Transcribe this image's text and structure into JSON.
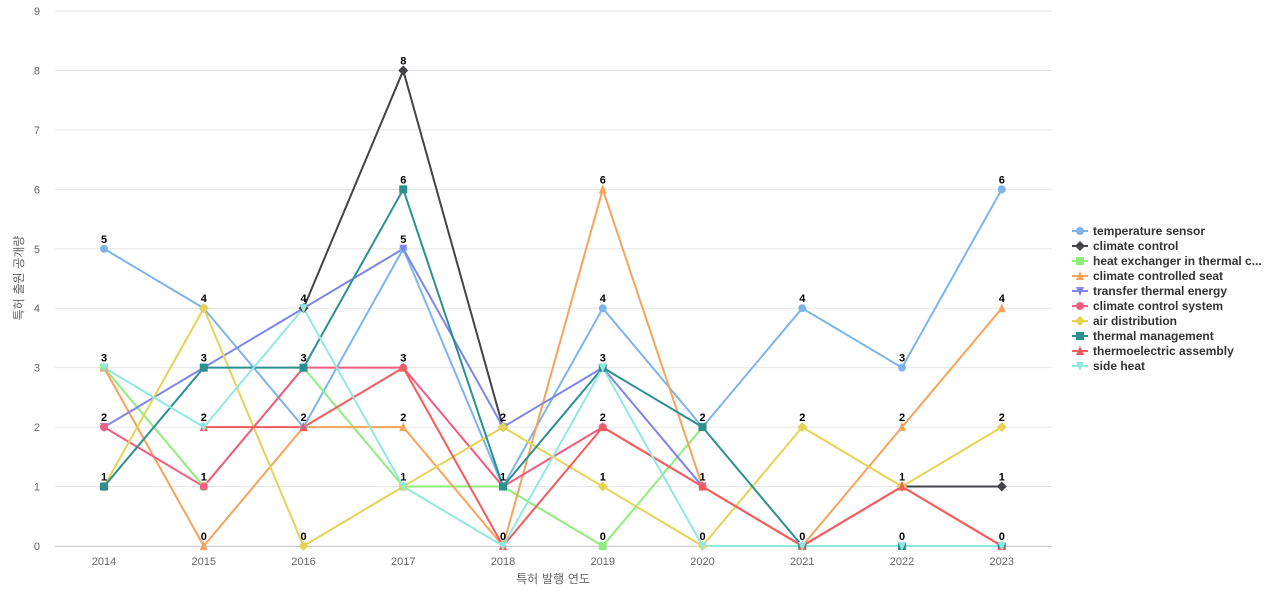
{
  "chart_data": {
    "type": "line",
    "title": "",
    "xlabel": "특허 발행 연도",
    "ylabel": "특허 출원 공개량",
    "categories": [
      "2014",
      "2015",
      "2016",
      "2017",
      "2018",
      "2019",
      "2020",
      "2021",
      "2022",
      "2023"
    ],
    "ylim": [
      0,
      9
    ],
    "yticks": [
      0,
      1,
      2,
      3,
      4,
      5,
      6,
      7,
      8,
      9
    ],
    "grid": true,
    "legend_position": "right",
    "series": [
      {
        "name": "temperature sensor",
        "legend_label": "temperature sensor",
        "color": "#7cb5ec",
        "marker": "circle",
        "values": [
          5,
          4,
          2,
          5,
          1,
          4,
          2,
          4,
          3,
          6
        ]
      },
      {
        "name": "climate control",
        "legend_label": "climate control",
        "color": "#434348",
        "marker": "diamond",
        "values": [
          null,
          null,
          4,
          8,
          2,
          null,
          null,
          null,
          1,
          1
        ]
      },
      {
        "name": "heat exchanger in thermal c...",
        "legend_label": "heat exchanger in thermal c...",
        "color": "#90ed7d",
        "marker": "square",
        "values": [
          3,
          1,
          3,
          1,
          1,
          0,
          2,
          null,
          null,
          null
        ]
      },
      {
        "name": "climate controlled seat",
        "legend_label": "climate controlled seat",
        "color": "#f7a35c",
        "marker": "triangle",
        "values": [
          3,
          0,
          2,
          2,
          0,
          6,
          1,
          0,
          2,
          4
        ]
      },
      {
        "name": "transfer thermal energy",
        "legend_label": "transfer thermal energy",
        "color": "#8085e9",
        "marker": "triangle-down",
        "values": [
          2,
          3,
          4,
          5,
          2,
          3,
          1,
          null,
          null,
          null
        ]
      },
      {
        "name": "climate control system",
        "legend_label": "climate control system",
        "color": "#f15c80",
        "marker": "circle",
        "values": [
          2,
          1,
          3,
          3,
          1,
          2,
          1,
          0,
          1,
          0
        ]
      },
      {
        "name": "air distribution",
        "legend_label": "air distribution",
        "color": "#e4d354",
        "marker": "diamond",
        "values": [
          1,
          4,
          0,
          1,
          2,
          1,
          0,
          2,
          1,
          2
        ]
      },
      {
        "name": "thermal management",
        "legend_label": "thermal management",
        "color": "#2b908f",
        "marker": "square",
        "values": [
          1,
          3,
          3,
          6,
          1,
          3,
          2,
          0,
          0,
          0
        ]
      },
      {
        "name": "thermoelectric assembly",
        "legend_label": "thermoelectric assembly",
        "color": "#f45b5b",
        "marker": "triangle",
        "values": [
          null,
          2,
          2,
          3,
          0,
          2,
          1,
          0,
          1,
          0
        ]
      },
      {
        "name": "side heat",
        "legend_label": "side heat",
        "color": "#91e8e1",
        "marker": "triangle-down",
        "values": [
          3,
          2,
          4,
          1,
          0,
          3,
          0,
          0,
          0,
          0
        ]
      }
    ],
    "data_labels": [
      {
        "x": 0,
        "y": 5,
        "text": "5"
      },
      {
        "x": 0,
        "y": 3,
        "text": "3"
      },
      {
        "x": 0,
        "y": 2,
        "text": "2"
      },
      {
        "x": 0,
        "y": 1,
        "text": "1"
      },
      {
        "x": 1,
        "y": 4,
        "text": "4"
      },
      {
        "x": 1,
        "y": 3,
        "text": "3"
      },
      {
        "x": 1,
        "y": 2,
        "text": "2"
      },
      {
        "x": 1,
        "y": 1,
        "text": "1"
      },
      {
        "x": 1,
        "y": 0,
        "text": "0"
      },
      {
        "x": 2,
        "y": 4,
        "text": "4"
      },
      {
        "x": 2,
        "y": 3,
        "text": "3"
      },
      {
        "x": 2,
        "y": 2,
        "text": "2"
      },
      {
        "x": 2,
        "y": 0,
        "text": "0"
      },
      {
        "x": 3,
        "y": 8,
        "text": "8"
      },
      {
        "x": 3,
        "y": 6,
        "text": "6"
      },
      {
        "x": 3,
        "y": 5,
        "text": "5"
      },
      {
        "x": 3,
        "y": 3,
        "text": "3"
      },
      {
        "x": 3,
        "y": 2,
        "text": "2"
      },
      {
        "x": 3,
        "y": 1,
        "text": "1"
      },
      {
        "x": 4,
        "y": 2,
        "text": "2"
      },
      {
        "x": 4,
        "y": 1,
        "text": "1"
      },
      {
        "x": 4,
        "y": 0,
        "text": "0"
      },
      {
        "x": 5,
        "y": 6,
        "text": "6"
      },
      {
        "x": 5,
        "y": 4,
        "text": "4"
      },
      {
        "x": 5,
        "y": 3,
        "text": "3"
      },
      {
        "x": 5,
        "y": 2,
        "text": "2"
      },
      {
        "x": 5,
        "y": 1,
        "text": "1"
      },
      {
        "x": 5,
        "y": 0,
        "text": "0"
      },
      {
        "x": 6,
        "y": 2,
        "text": "2"
      },
      {
        "x": 6,
        "y": 1,
        "text": "1"
      },
      {
        "x": 6,
        "y": 0,
        "text": "0"
      },
      {
        "x": 7,
        "y": 4,
        "text": "4"
      },
      {
        "x": 7,
        "y": 2,
        "text": "2"
      },
      {
        "x": 7,
        "y": 0,
        "text": "0"
      },
      {
        "x": 8,
        "y": 3,
        "text": "3"
      },
      {
        "x": 8,
        "y": 2,
        "text": "2"
      },
      {
        "x": 8,
        "y": 1,
        "text": "1"
      },
      {
        "x": 8,
        "y": 0,
        "text": "0"
      },
      {
        "x": 9,
        "y": 6,
        "text": "6"
      },
      {
        "x": 9,
        "y": 4,
        "text": "4"
      },
      {
        "x": 9,
        "y": 2,
        "text": "2"
      },
      {
        "x": 9,
        "y": 1,
        "text": "1"
      },
      {
        "x": 9,
        "y": 0,
        "text": "0"
      }
    ]
  },
  "colors": {
    "grid": "#e6e6e6",
    "axis_text": "#666666",
    "label_text": "#000000",
    "legend_text": "#333333"
  }
}
